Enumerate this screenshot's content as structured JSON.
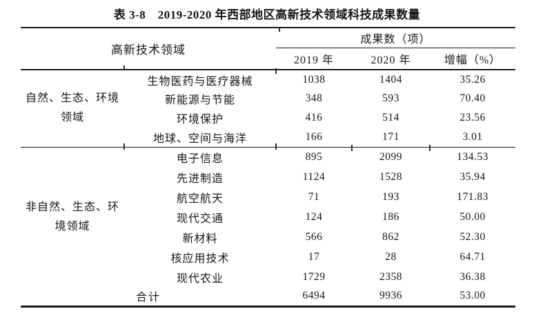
{
  "title": "表 3-8　2019-2020 年西部地区高新技术领域科技成果数量",
  "table": {
    "col_field_header": "高新技术领域",
    "col_results_header": "成果数（项）",
    "subheaders": {
      "y2019": "2019 年",
      "y2020": "2020 年",
      "growth": "增幅（%）"
    },
    "groups": [
      {
        "label": "自然、生态、环境\n领域",
        "rows": [
          {
            "field": "生物医药与医疗器械",
            "y2019": "1038",
            "y2020": "1404",
            "growth": "35.26"
          },
          {
            "field": "新能源与节能",
            "y2019": "348",
            "y2020": "593",
            "growth": "70.40"
          },
          {
            "field": "环境保护",
            "y2019": "416",
            "y2020": "514",
            "growth": "23.56"
          },
          {
            "field": "地球、空间与海洋",
            "y2019": "166",
            "y2020": "171",
            "growth": "3.01"
          }
        ]
      },
      {
        "label": "非自然、生态、环\n境领域",
        "rows": [
          {
            "field": "电子信息",
            "y2019": "895",
            "y2020": "2099",
            "growth": "134.53"
          },
          {
            "field": "先进制造",
            "y2019": "1124",
            "y2020": "1528",
            "growth": "35.94"
          },
          {
            "field": "航空航天",
            "y2019": "71",
            "y2020": "193",
            "growth": "171.83"
          },
          {
            "field": "现代交通",
            "y2019": "124",
            "y2020": "186",
            "growth": "50.00"
          },
          {
            "field": "新材料",
            "y2019": "566",
            "y2020": "862",
            "growth": "52.30"
          },
          {
            "field": "核应用技术",
            "y2019": "17",
            "y2020": "28",
            "growth": "64.71"
          },
          {
            "field": "现代农业",
            "y2019": "1729",
            "y2020": "2358",
            "growth": "36.38"
          }
        ]
      }
    ],
    "total": {
      "label": "合计",
      "y2019": "6494",
      "y2020": "9936",
      "growth": "53.00"
    }
  },
  "colors": {
    "text": "#151515",
    "rule": "#161616",
    "background": "#ffffff"
  }
}
